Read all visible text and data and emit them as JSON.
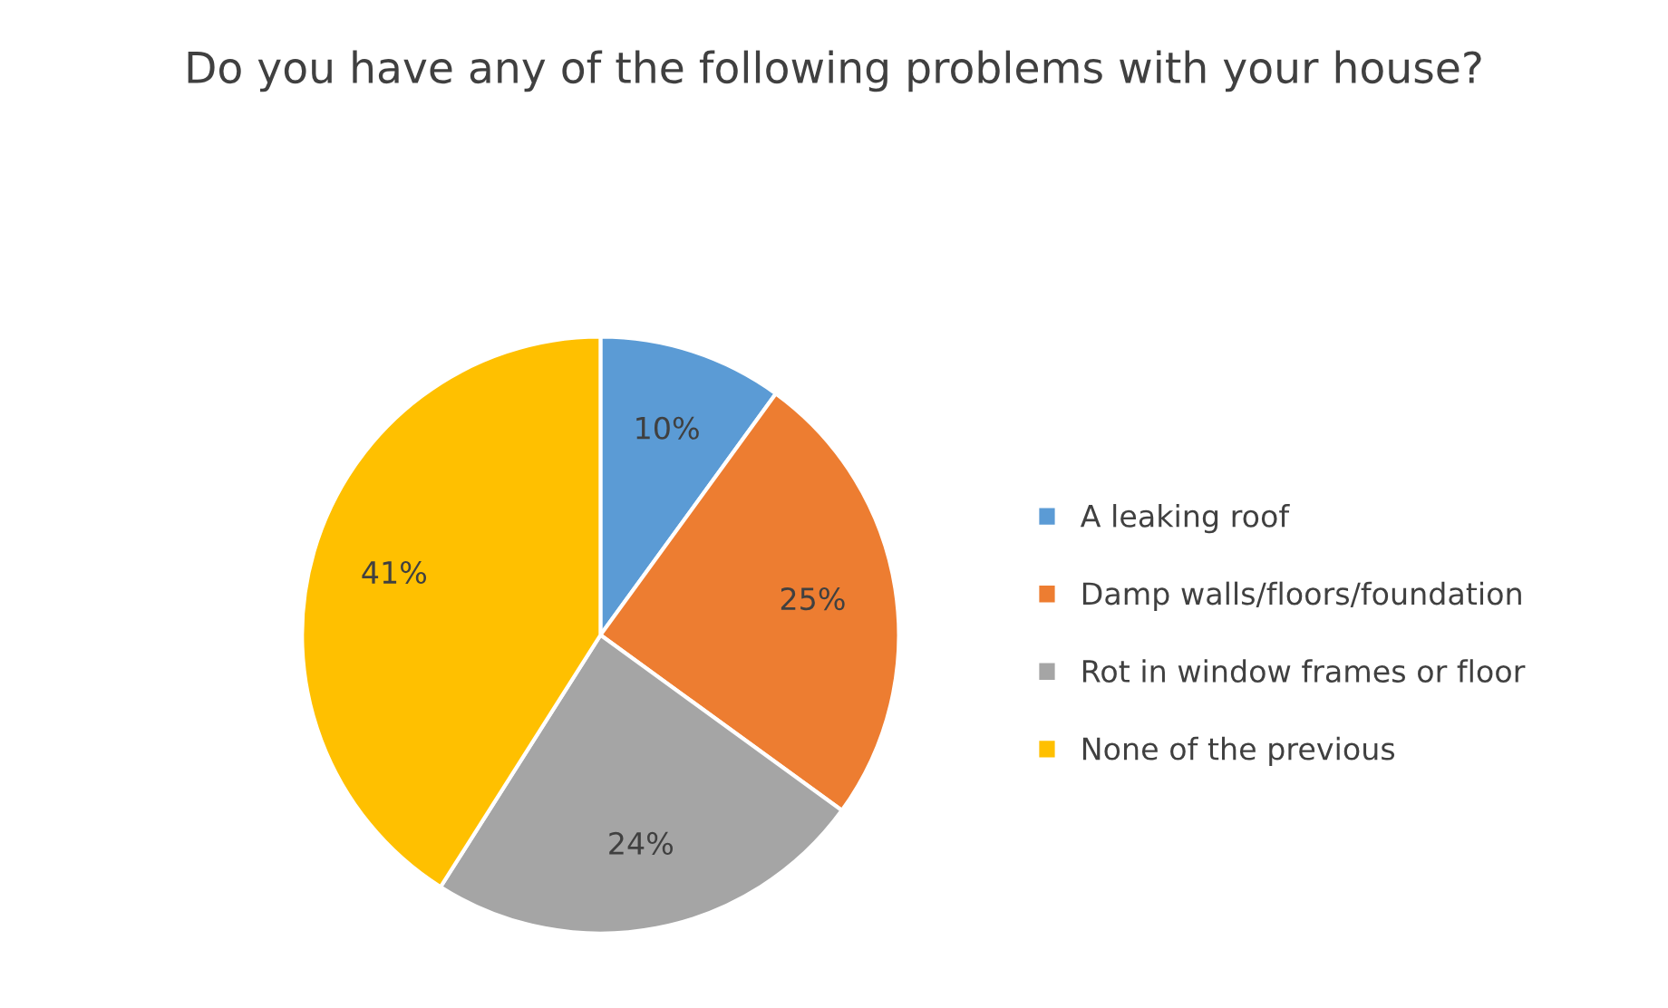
{
  "chart_data": {
    "type": "pie",
    "title": "Do you have any of the following problems with your house?",
    "categories": [
      "A leaking roof",
      "Damp walls/floors/foundation",
      "Rot in window frames or floor",
      "None of the previous"
    ],
    "values": [
      10,
      25,
      24,
      41
    ],
    "colors": [
      "#5b9bd5",
      "#ed7d31",
      "#a5a5a5",
      "#ffc000"
    ],
    "value_labels": [
      "10%",
      "25%",
      "24%",
      "41%"
    ],
    "legend": "right"
  }
}
